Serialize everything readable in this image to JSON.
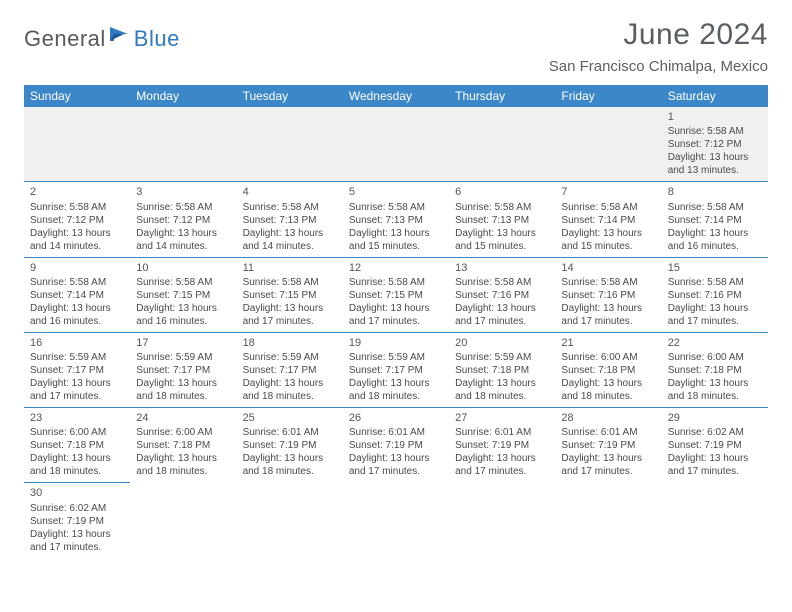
{
  "logo": {
    "general": "General",
    "blue": "Blue"
  },
  "title": "June 2024",
  "location": "San Francisco Chimalpa, Mexico",
  "colors": {
    "header_bg": "#3b87c8",
    "header_text": "#ffffff",
    "title_text": "#5a5f66",
    "body_text": "#4a4a4a",
    "rule": "#3b87c8",
    "empty_bg": "#f0f0f0",
    "logo_blue": "#2f79c2",
    "logo_gray": "#555a5f"
  },
  "days_of_week": [
    "Sunday",
    "Monday",
    "Tuesday",
    "Wednesday",
    "Thursday",
    "Friday",
    "Saturday"
  ],
  "weeks": [
    [
      null,
      null,
      null,
      null,
      null,
      null,
      {
        "n": "1",
        "sr": "5:58 AM",
        "ss": "7:12 PM",
        "dl": "13 hours and 13 minutes."
      }
    ],
    [
      {
        "n": "2",
        "sr": "5:58 AM",
        "ss": "7:12 PM",
        "dl": "13 hours and 14 minutes."
      },
      {
        "n": "3",
        "sr": "5:58 AM",
        "ss": "7:12 PM",
        "dl": "13 hours and 14 minutes."
      },
      {
        "n": "4",
        "sr": "5:58 AM",
        "ss": "7:13 PM",
        "dl": "13 hours and 14 minutes."
      },
      {
        "n": "5",
        "sr": "5:58 AM",
        "ss": "7:13 PM",
        "dl": "13 hours and 15 minutes."
      },
      {
        "n": "6",
        "sr": "5:58 AM",
        "ss": "7:13 PM",
        "dl": "13 hours and 15 minutes."
      },
      {
        "n": "7",
        "sr": "5:58 AM",
        "ss": "7:14 PM",
        "dl": "13 hours and 15 minutes."
      },
      {
        "n": "8",
        "sr": "5:58 AM",
        "ss": "7:14 PM",
        "dl": "13 hours and 16 minutes."
      }
    ],
    [
      {
        "n": "9",
        "sr": "5:58 AM",
        "ss": "7:14 PM",
        "dl": "13 hours and 16 minutes."
      },
      {
        "n": "10",
        "sr": "5:58 AM",
        "ss": "7:15 PM",
        "dl": "13 hours and 16 minutes."
      },
      {
        "n": "11",
        "sr": "5:58 AM",
        "ss": "7:15 PM",
        "dl": "13 hours and 17 minutes."
      },
      {
        "n": "12",
        "sr": "5:58 AM",
        "ss": "7:15 PM",
        "dl": "13 hours and 17 minutes."
      },
      {
        "n": "13",
        "sr": "5:58 AM",
        "ss": "7:16 PM",
        "dl": "13 hours and 17 minutes."
      },
      {
        "n": "14",
        "sr": "5:58 AM",
        "ss": "7:16 PM",
        "dl": "13 hours and 17 minutes."
      },
      {
        "n": "15",
        "sr": "5:58 AM",
        "ss": "7:16 PM",
        "dl": "13 hours and 17 minutes."
      }
    ],
    [
      {
        "n": "16",
        "sr": "5:59 AM",
        "ss": "7:17 PM",
        "dl": "13 hours and 17 minutes."
      },
      {
        "n": "17",
        "sr": "5:59 AM",
        "ss": "7:17 PM",
        "dl": "13 hours and 18 minutes."
      },
      {
        "n": "18",
        "sr": "5:59 AM",
        "ss": "7:17 PM",
        "dl": "13 hours and 18 minutes."
      },
      {
        "n": "19",
        "sr": "5:59 AM",
        "ss": "7:17 PM",
        "dl": "13 hours and 18 minutes."
      },
      {
        "n": "20",
        "sr": "5:59 AM",
        "ss": "7:18 PM",
        "dl": "13 hours and 18 minutes."
      },
      {
        "n": "21",
        "sr": "6:00 AM",
        "ss": "7:18 PM",
        "dl": "13 hours and 18 minutes."
      },
      {
        "n": "22",
        "sr": "6:00 AM",
        "ss": "7:18 PM",
        "dl": "13 hours and 18 minutes."
      }
    ],
    [
      {
        "n": "23",
        "sr": "6:00 AM",
        "ss": "7:18 PM",
        "dl": "13 hours and 18 minutes."
      },
      {
        "n": "24",
        "sr": "6:00 AM",
        "ss": "7:18 PM",
        "dl": "13 hours and 18 minutes."
      },
      {
        "n": "25",
        "sr": "6:01 AM",
        "ss": "7:19 PM",
        "dl": "13 hours and 18 minutes."
      },
      {
        "n": "26",
        "sr": "6:01 AM",
        "ss": "7:19 PM",
        "dl": "13 hours and 17 minutes."
      },
      {
        "n": "27",
        "sr": "6:01 AM",
        "ss": "7:19 PM",
        "dl": "13 hours and 17 minutes."
      },
      {
        "n": "28",
        "sr": "6:01 AM",
        "ss": "7:19 PM",
        "dl": "13 hours and 17 minutes."
      },
      {
        "n": "29",
        "sr": "6:02 AM",
        "ss": "7:19 PM",
        "dl": "13 hours and 17 minutes."
      }
    ],
    [
      {
        "n": "30",
        "sr": "6:02 AM",
        "ss": "7:19 PM",
        "dl": "13 hours and 17 minutes."
      },
      null,
      null,
      null,
      null,
      null,
      null
    ]
  ],
  "labels": {
    "sunrise": "Sunrise: ",
    "sunset": "Sunset: ",
    "daylight": "Daylight: "
  }
}
